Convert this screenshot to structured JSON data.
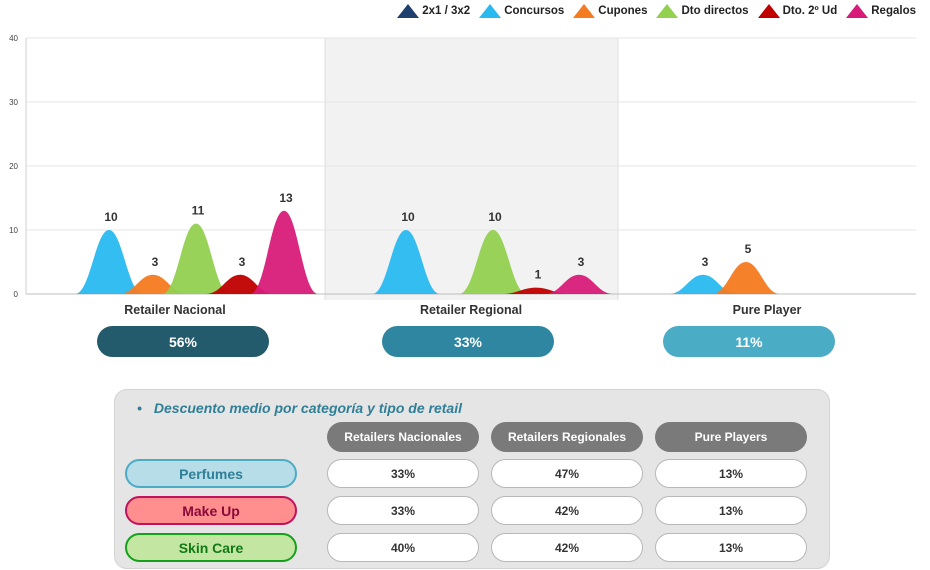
{
  "chart_data": {
    "type": "area",
    "ylim": [
      0,
      40
    ],
    "yticks": [
      0,
      10,
      20,
      30,
      40
    ],
    "categories": [
      "Retailer Nacional",
      "Retailer Regional",
      "Pure Player"
    ],
    "category_shares": [
      "56%",
      "33%",
      "11%"
    ],
    "series": [
      {
        "name": "2x1 / 3x2",
        "color": "#1f3f6e",
        "values": [
          0,
          0,
          0
        ]
      },
      {
        "name": "Concursos",
        "color": "#29b9ef",
        "values": [
          10,
          10,
          3
        ]
      },
      {
        "name": "Cupones",
        "color": "#f47b20",
        "values": [
          3,
          0,
          5
        ]
      },
      {
        "name": "Dto directos",
        "color": "#92d050",
        "values": [
          11,
          10,
          0
        ]
      },
      {
        "name": "Dto. 2º Ud",
        "color": "#c00000",
        "values": [
          3,
          1,
          0
        ]
      },
      {
        "name": "Regalos",
        "color": "#d81b78",
        "values": [
          13,
          3,
          0
        ]
      }
    ],
    "shaded_category": "Retailer Regional"
  },
  "share_colors": [
    "#235a6c",
    "#2e86a0",
    "#4bacc6"
  ],
  "table": {
    "title": "Descuento medio por categoría y tipo de retail",
    "bullet": "•",
    "columns": [
      "Retailers Nacionales",
      "Retailers Regionales",
      "Pure Players"
    ],
    "rows": [
      {
        "label": "Perfumes",
        "values": [
          "33%",
          "47%",
          "13%"
        ],
        "fill": "#b7dde8",
        "border": "#4bacc6",
        "text": "#2f7f97"
      },
      {
        "label": "Make Up",
        "values": [
          "33%",
          "42%",
          "13%"
        ],
        "fill": "#ff8f8f",
        "border": "#c0135e",
        "text": "#8b0a3a"
      },
      {
        "label": "Skin Care",
        "values": [
          "40%",
          "42%",
          "13%"
        ],
        "fill": "#c4e6a3",
        "border": "#15a11b",
        "text": "#117a17"
      }
    ]
  }
}
